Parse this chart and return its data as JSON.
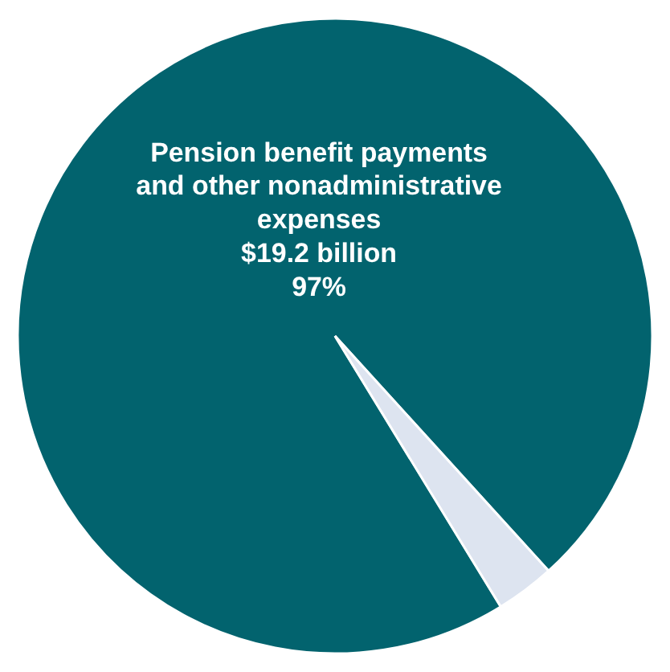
{
  "chart_data": {
    "type": "pie",
    "categories": [
      "Pension benefit payments and other nonadministrative expenses",
      null
    ],
    "values": [
      97,
      3
    ],
    "colors": [
      "#02636e",
      "#dde4f0"
    ],
    "value_labels": [
      "$19.2 billion\n97%",
      null
    ],
    "legend": false
  }
}
